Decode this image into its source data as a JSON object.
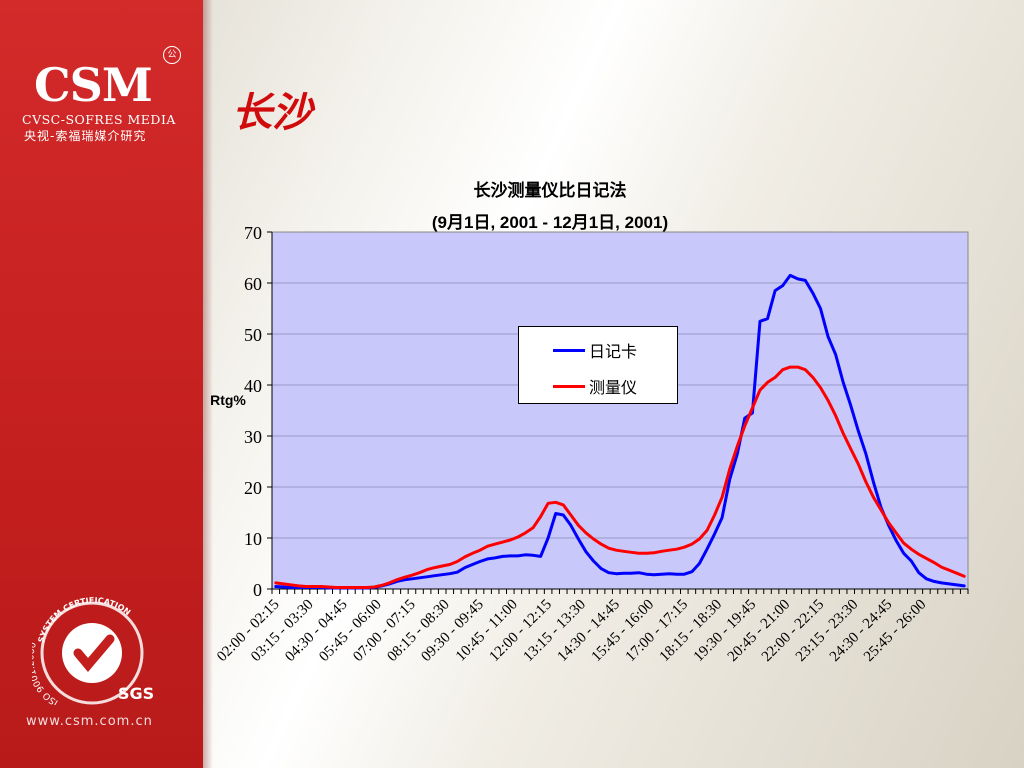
{
  "sidebar": {
    "logo_text": "CSM",
    "logo_sub_en": "CVSC-SOFRES MEDIA",
    "logo_sub_cn": "央视-索福瑞媒介研究",
    "registered_mark": "公",
    "cert_text": "SYSTEM CERTIFICATION",
    "cert_iso": "ISO 9001:2000",
    "cert_sgs": "SGS",
    "website": "www.csm.com.cn",
    "bg_color": "#c41f1f"
  },
  "page_title": "长沙",
  "chart_data": {
    "type": "line",
    "title": "长沙测量仪比日记法",
    "subtitle": "(9月1日, 2001 - 12月1日, 2001)",
    "ylabel": "Rtg%",
    "ylim": [
      0,
      70
    ],
    "yticks": [
      0,
      10,
      20,
      30,
      40,
      50,
      60,
      70
    ],
    "grid": true,
    "legend_position": "center",
    "x_tick_labels": [
      "02:00 - 02:15",
      "03:15 - 03:30",
      "04:30 - 04:45",
      "05:45 - 06:00",
      "07:00 - 07:15",
      "08:15 - 08:30",
      "09:30 - 09:45",
      "10:45 - 11:00",
      "12:00 - 12:15",
      "13:15 - 13:30",
      "14:30 - 14:45",
      "15:45 - 16:00",
      "17:00 - 17:15",
      "18:15 - 18:30",
      "19:30 - 19:45",
      "20:45 - 21:00",
      "22:00 - 22:15",
      "23:15 - 23:30",
      "24:30 - 24:45",
      "25:45 - 26:00"
    ],
    "series": [
      {
        "name": "日记卡",
        "color": "#0000ff",
        "values": [
          0.5,
          0.4,
          0.3,
          0.3,
          0.3,
          0.3,
          0.3,
          0.2,
          0.2,
          0.2,
          0.2,
          0.2,
          0.2,
          0.3,
          0.6,
          1.0,
          1.5,
          1.8,
          2.0,
          2.2,
          2.4,
          2.6,
          2.8,
          3.0,
          3.3,
          4.2,
          4.8,
          5.4,
          5.9,
          6.1,
          6.4,
          6.5,
          6.5,
          6.7,
          6.6,
          6.4,
          10.0,
          14.8,
          14.5,
          12.5,
          9.8,
          7.3,
          5.5,
          4.0,
          3.2,
          3.0,
          3.1,
          3.1,
          3.2,
          2.9,
          2.8,
          2.9,
          3.0,
          2.9,
          2.9,
          3.4,
          5.0,
          7.8,
          10.8,
          14.0,
          21.5,
          26.5,
          33.5,
          34.5,
          52.5,
          53.0,
          58.5,
          59.5,
          61.5,
          60.8,
          60.5,
          58.0,
          55.0,
          49.5,
          46.0,
          40.5,
          36.0,
          31.0,
          26.5,
          21.0,
          16.0,
          12.5,
          9.5,
          7.0,
          5.5,
          3.2,
          2.0,
          1.5,
          1.2,
          1.0,
          0.8,
          0.6
        ]
      },
      {
        "name": "测量仪",
        "color": "#ff0000",
        "values": [
          1.2,
          1.0,
          0.8,
          0.6,
          0.5,
          0.5,
          0.5,
          0.4,
          0.3,
          0.3,
          0.3,
          0.3,
          0.3,
          0.4,
          0.7,
          1.2,
          1.8,
          2.3,
          2.7,
          3.2,
          3.8,
          4.2,
          4.5,
          4.8,
          5.4,
          6.3,
          7.0,
          7.6,
          8.4,
          8.8,
          9.2,
          9.6,
          10.2,
          11.0,
          12.0,
          14.2,
          16.8,
          17.0,
          16.5,
          14.5,
          12.5,
          11.0,
          9.8,
          8.8,
          8.0,
          7.6,
          7.4,
          7.2,
          7.0,
          7.0,
          7.1,
          7.4,
          7.6,
          7.8,
          8.2,
          8.8,
          9.8,
          11.5,
          14.5,
          18.0,
          23.5,
          28.0,
          32.0,
          35.5,
          39.0,
          40.5,
          41.5,
          43.0,
          43.5,
          43.5,
          43.0,
          41.5,
          39.5,
          37.0,
          34.0,
          30.5,
          27.5,
          24.5,
          21.0,
          18.0,
          15.5,
          13.0,
          11.0,
          9.0,
          7.8,
          6.8,
          6.0,
          5.2,
          4.3,
          3.7,
          3.1,
          2.5
        ]
      }
    ]
  }
}
